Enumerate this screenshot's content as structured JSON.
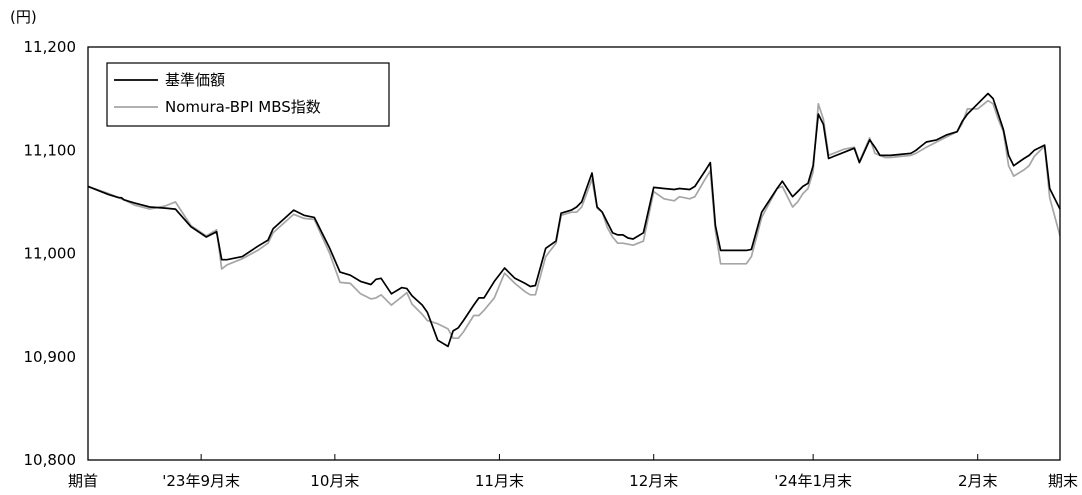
{
  "chart_data": {
    "type": "line",
    "unit_label": "(円)",
    "title": "",
    "xlabel": "",
    "ylabel": "",
    "ylim": [
      10800,
      11200
    ],
    "yticks": [
      10800,
      10900,
      11000,
      11100,
      11200
    ],
    "ytick_labels": [
      "10,800",
      "10,900",
      "11,000",
      "11,100",
      "11,200"
    ],
    "xlim": [
      0,
      189
    ],
    "xtick_labels": [
      {
        "x": 0,
        "label": "期首"
      },
      {
        "x": 22,
        "label": "'23年9月末"
      },
      {
        "x": 48,
        "label": "10月末"
      },
      {
        "x": 80,
        "label": "11月末"
      },
      {
        "x": 110,
        "label": "12月末"
      },
      {
        "x": 141,
        "label": "'24年1月末"
      },
      {
        "x": 173,
        "label": "2月末"
      },
      {
        "x": 189,
        "label": "期末"
      }
    ],
    "grid": false,
    "legend_position": "top-left",
    "series": [
      {
        "name": "基準価額",
        "color": "#000000",
        "x": [
          0,
          4,
          6,
          6.5,
          7,
          9,
          12,
          15,
          17,
          20,
          23,
          25,
          26,
          27,
          30,
          33,
          35,
          36,
          40,
          42,
          44,
          47,
          49,
          51,
          53,
          55,
          56,
          57,
          59,
          61,
          62,
          63,
          65,
          66,
          68,
          70,
          71,
          72,
          73,
          75,
          76,
          77,
          79,
          81,
          83,
          85,
          86,
          87,
          89,
          91,
          92,
          94,
          95,
          96,
          98,
          99,
          100,
          101,
          102,
          103,
          104,
          105,
          106,
          108,
          110,
          112,
          114,
          115,
          117,
          118,
          120,
          121,
          122,
          123,
          126,
          128,
          129,
          131,
          134,
          135,
          137,
          138,
          139,
          140,
          141,
          142,
          143,
          144,
          145,
          147,
          149,
          150,
          152,
          153,
          154,
          155,
          156,
          158,
          160,
          161,
          162,
          163,
          165,
          167,
          169,
          170,
          171,
          173,
          175,
          176,
          177,
          178,
          179,
          180,
          182,
          183,
          184,
          186,
          187,
          189
        ],
        "values": [
          11065,
          11057,
          11054,
          11054,
          11052,
          11049,
          11045,
          11044,
          11043,
          11026,
          11016,
          11021,
          10994,
          10994,
          10997,
          11007,
          11013,
          11024,
          11042,
          11037,
          11035,
          11005,
          10982,
          10979,
          10973,
          10970,
          10975,
          10976,
          10961,
          10967,
          10966,
          10959,
          10950,
          10943,
          10916,
          10910,
          10925,
          10928,
          10935,
          10950,
          10957,
          10957,
          10973,
          10986,
          10976,
          10971,
          10968,
          10969,
          11005,
          11012,
          11039,
          11042,
          11045,
          11050,
          11078,
          11045,
          11040,
          11030,
          11020,
          11018,
          11018,
          11015,
          11014,
          11020,
          11064,
          11063,
          11062,
          11063,
          11062,
          11065,
          11080,
          11088,
          11027,
          11003,
          11003,
          11003,
          11004,
          11040,
          11063,
          11070,
          11055,
          11060,
          11065,
          11068,
          11085,
          11135,
          11125,
          11092,
          11094,
          11098,
          11102,
          11088,
          11110,
          11103,
          11095,
          11095,
          11095,
          11096,
          11097,
          11100,
          11104,
          11108,
          11110,
          11115,
          11118,
          11128,
          11135,
          11145,
          11155,
          11150,
          11135,
          11120,
          11095,
          11085,
          11092,
          11095,
          11100,
          11105,
          11063,
          11043
        ]
      },
      {
        "name": "Nomura-BPI MBS指数",
        "color": "#a6a6a6",
        "x": [
          0,
          4,
          6,
          6.5,
          7,
          9,
          12,
          15,
          17,
          20,
          23,
          25,
          26,
          27,
          30,
          33,
          35,
          36,
          40,
          42,
          44,
          47,
          49,
          51,
          53,
          55,
          56,
          57,
          59,
          61,
          62,
          63,
          65,
          66,
          68,
          70,
          71,
          72,
          73,
          75,
          76,
          77,
          79,
          81,
          83,
          85,
          86,
          87,
          89,
          91,
          92,
          94,
          95,
          96,
          98,
          99,
          100,
          101,
          102,
          103,
          104,
          105,
          106,
          108,
          110,
          112,
          114,
          115,
          117,
          118,
          120,
          121,
          122,
          123,
          126,
          128,
          129,
          131,
          134,
          135,
          137,
          138,
          139,
          140,
          141,
          142,
          143,
          144,
          145,
          147,
          149,
          150,
          152,
          153,
          154,
          155,
          156,
          158,
          160,
          161,
          162,
          163,
          165,
          167,
          169,
          170,
          171,
          173,
          175,
          176,
          177,
          178,
          179,
          180,
          182,
          183,
          184,
          186,
          187,
          189
        ],
        "values": [
          11065,
          11058,
          11054,
          11053,
          11052,
          11047,
          11043,
          11046,
          11050,
          11027,
          11017,
          11023,
          10985,
          10989,
          10995,
          11003,
          11010,
          11020,
          11038,
          11034,
          11033,
          11000,
          10972,
          10971,
          10961,
          10956,
          10957,
          10960,
          10950,
          10958,
          10962,
          10951,
          10941,
          10935,
          10932,
          10927,
          10918,
          10918,
          10924,
          10940,
          10940,
          10945,
          10957,
          10981,
          10971,
          10963,
          10960,
          10960,
          10997,
          11010,
          11037,
          11040,
          11040,
          11045,
          11072,
          11044,
          11040,
          11025,
          11016,
          11010,
          11010,
          11009,
          11008,
          11012,
          11060,
          11053,
          11051,
          11055,
          11053,
          11055,
          11072,
          11080,
          11022,
          10990,
          10990,
          10990,
          10997,
          11035,
          11063,
          11065,
          11045,
          11050,
          11058,
          11063,
          11079,
          11145,
          11130,
          11095,
          11097,
          11101,
          11103,
          11089,
          11112,
          11097,
          11095,
          11093,
          11093,
          11094,
          11095,
          11097,
          11100,
          11103,
          11108,
          11113,
          11118,
          11126,
          11140,
          11140,
          11148,
          11145,
          11130,
          11118,
          11085,
          11075,
          11081,
          11085,
          11094,
          11104,
          11054,
          11017
        ]
      }
    ]
  }
}
